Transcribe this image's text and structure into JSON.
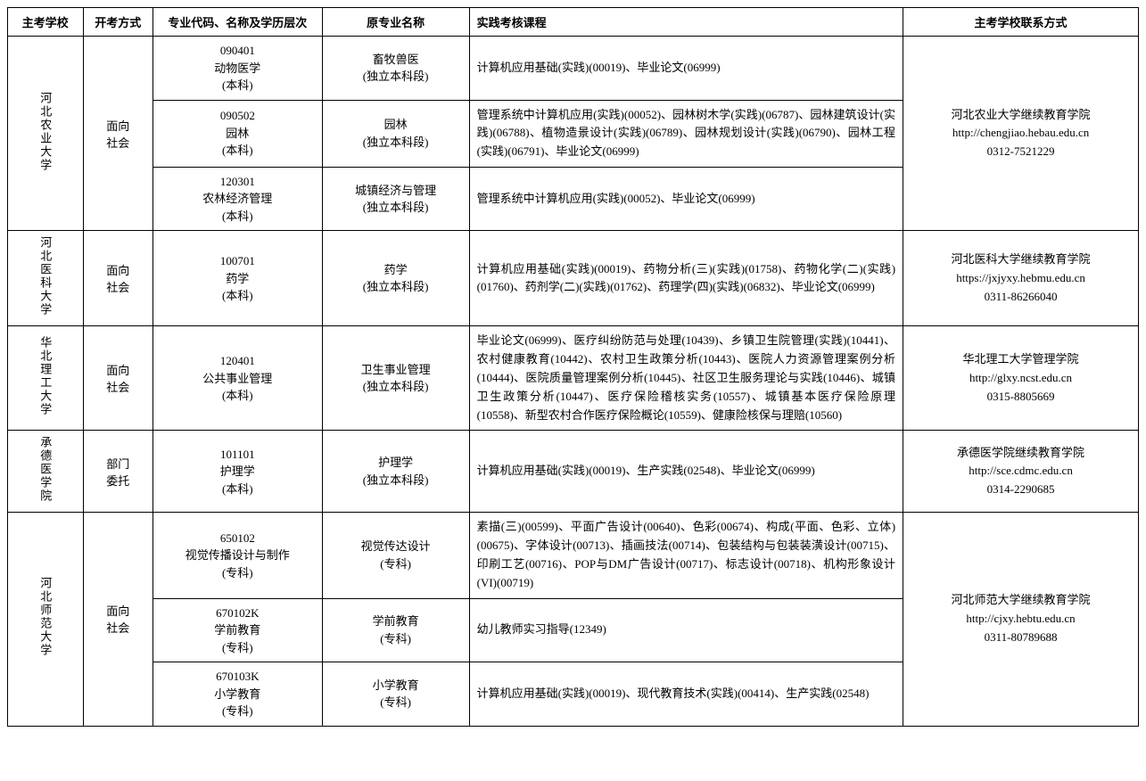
{
  "headers": {
    "school": "主考学校",
    "method": "开考方式",
    "major": "专业代码、名称及学历层次",
    "origname": "原专业名称",
    "courses": "实践考核课程",
    "contact": "主考学校联系方式"
  },
  "groups": [
    {
      "school": "河北农业大学",
      "method": "面向社会",
      "contact_lines": [
        "河北农业大学继续教育学院",
        "http://chengjiao.hebau.edu.cn",
        "0312-7521229"
      ],
      "rows": [
        {
          "major_lines": [
            "090401",
            "动物医学",
            "(本科)"
          ],
          "origname_lines": [
            "畜牧兽医",
            "(独立本科段)"
          ],
          "courses": "计算机应用基础(实践)(00019)、毕业论文(06999)"
        },
        {
          "major_lines": [
            "090502",
            "园林",
            "(本科)"
          ],
          "origname_lines": [
            "园林",
            "(独立本科段)"
          ],
          "courses": "管理系统中计算机应用(实践)(00052)、园林树木学(实践)(06787)、园林建筑设计(实践)(06788)、植物造景设计(实践)(06789)、园林规划设计(实践)(06790)、园林工程(实践)(06791)、毕业论文(06999)"
        },
        {
          "major_lines": [
            "120301",
            "农林经济管理",
            "(本科)"
          ],
          "origname_lines": [
            "城镇经济与管理",
            "(独立本科段)"
          ],
          "courses": "管理系统中计算机应用(实践)(00052)、毕业论文(06999)"
        }
      ]
    },
    {
      "school": "河北医科大学",
      "method": "面向社会",
      "contact_lines": [
        "河北医科大学继续教育学院",
        "https://jxjyxy.hebmu.edu.cn",
        "0311-86266040"
      ],
      "rows": [
        {
          "major_lines": [
            "100701",
            "药学",
            "(本科)"
          ],
          "origname_lines": [
            "药学",
            "(独立本科段)"
          ],
          "courses": "计算机应用基础(实践)(00019)、药物分析(三)(实践)(01758)、药物化学(二)(实践)(01760)、药剂学(二)(实践)(01762)、药理学(四)(实践)(06832)、毕业论文(06999)"
        }
      ]
    },
    {
      "school": "华北理工大学",
      "method": "面向社会",
      "contact_lines": [
        "华北理工大学管理学院",
        "http://glxy.ncst.edu.cn",
        "0315-8805669"
      ],
      "rows": [
        {
          "major_lines": [
            "120401",
            "公共事业管理",
            "(本科)"
          ],
          "origname_lines": [
            "卫生事业管理",
            "(独立本科段)"
          ],
          "courses": "毕业论文(06999)、医疗纠纷防范与处理(10439)、乡镇卫生院管理(实践)(10441)、农村健康教育(10442)、农村卫生政策分析(10443)、医院人力资源管理案例分析(10444)、医院质量管理案例分析(10445)、社区卫生服务理论与实践(10446)、城镇卫生政策分析(10447)、医疗保险稽核实务(10557)、城镇基本医疗保险原理(10558)、新型农村合作医疗保险概论(10559)、健康险核保与理赔(10560)"
        }
      ]
    },
    {
      "school": "承德医学院",
      "method": "部门委托",
      "contact_lines": [
        "承德医学院继续教育学院",
        "http://sce.cdmc.edu.cn",
        "0314-2290685"
      ],
      "rows": [
        {
          "major_lines": [
            "101101",
            "护理学",
            "(本科)"
          ],
          "origname_lines": [
            "护理学",
            "(独立本科段)"
          ],
          "courses": "计算机应用基础(实践)(00019)、生产实践(02548)、毕业论文(06999)"
        }
      ]
    },
    {
      "school": "河北师范大学",
      "method": "面向社会",
      "contact_lines": [
        "河北师范大学继续教育学院",
        "http://cjxy.hebtu.edu.cn",
        "0311-80789688"
      ],
      "rows": [
        {
          "major_lines": [
            "650102",
            "视觉传播设计与制作",
            "(专科)"
          ],
          "origname_lines": [
            "视觉传达设计",
            "(专科)"
          ],
          "courses": "素描(三)(00599)、平面广告设计(00640)、色彩(00674)、构成(平面、色彩、立体)(00675)、字体设计(00713)、插画技法(00714)、包装结构与包装装潢设计(00715)、印刷工艺(00716)、POP与DM广告设计(00717)、标志设计(00718)、机构形象设计(VI)(00719)"
        },
        {
          "major_lines": [
            "670102K",
            "学前教育",
            "(专科)"
          ],
          "origname_lines": [
            "学前教育",
            "(专科)"
          ],
          "courses": "幼儿教师实习指导(12349)"
        },
        {
          "major_lines": [
            "670103K",
            "小学教育",
            "(专科)"
          ],
          "origname_lines": [
            "小学教育",
            "(专科)"
          ],
          "courses": "计算机应用基础(实践)(00019)、现代教育技术(实践)(00414)、生产实践(02548)"
        }
      ]
    }
  ]
}
